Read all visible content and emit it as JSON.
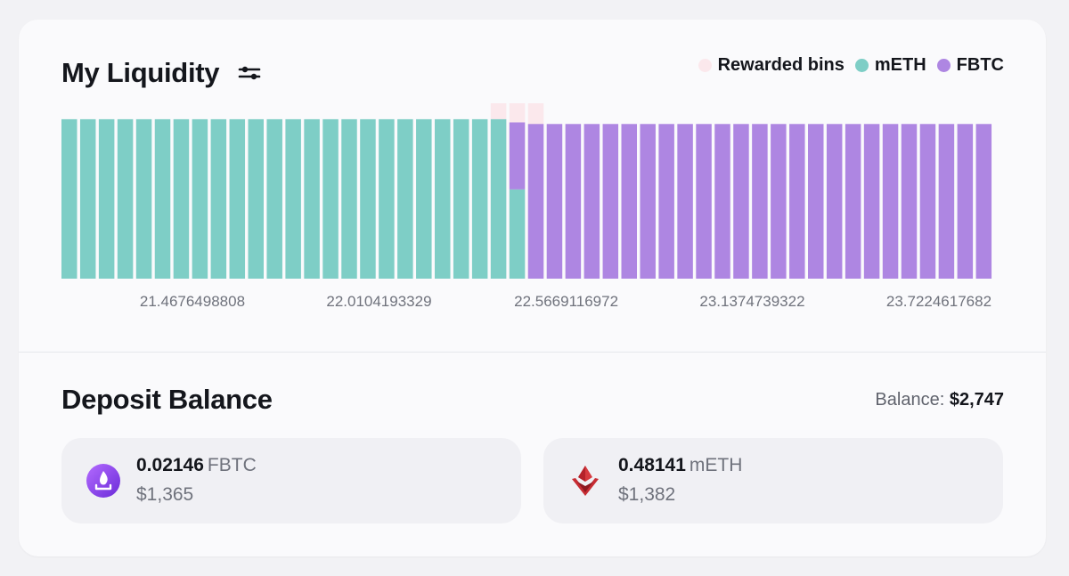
{
  "liquidity": {
    "title": "My Liquidity",
    "legend": [
      {
        "label": "Rewarded bins",
        "color": "#fbe8ec"
      },
      {
        "label": "mETH",
        "color": "#7ecec6"
      },
      {
        "label": "FBTC",
        "color": "#ae86e2"
      }
    ]
  },
  "chart_data": {
    "type": "bar",
    "title": "My Liquidity",
    "stacked": true,
    "bin_count": 50,
    "series": [
      {
        "name": "mETH",
        "color": "#7ecec6",
        "values": [
          100,
          100,
          100,
          100,
          100,
          100,
          100,
          100,
          100,
          100,
          100,
          100,
          100,
          100,
          100,
          100,
          100,
          100,
          100,
          100,
          100,
          100,
          100,
          100,
          56,
          0,
          0,
          0,
          0,
          0,
          0,
          0,
          0,
          0,
          0,
          0,
          0,
          0,
          0,
          0,
          0,
          0,
          0,
          0,
          0,
          0,
          0,
          0,
          0,
          0
        ]
      },
      {
        "name": "FBTC",
        "color": "#ae86e2",
        "values": [
          0,
          0,
          0,
          0,
          0,
          0,
          0,
          0,
          0,
          0,
          0,
          0,
          0,
          0,
          0,
          0,
          0,
          0,
          0,
          0,
          0,
          0,
          0,
          0,
          42,
          97,
          97,
          97,
          97,
          97,
          97,
          97,
          97,
          97,
          97,
          97,
          97,
          97,
          97,
          97,
          97,
          97,
          97,
          97,
          97,
          97,
          97,
          97,
          97,
          97
        ]
      }
    ],
    "rewarded_bins": [
      23,
      24,
      25
    ],
    "x_tick_labels": [
      {
        "bin": 9,
        "label": "21.4676498808"
      },
      {
        "bin": 19,
        "label": "22.0104193329"
      },
      {
        "bin": 29,
        "label": "22.5669116972"
      },
      {
        "bin": 39,
        "label": "23.1374739322"
      },
      {
        "bin": 49,
        "label": "23.7224617682"
      }
    ],
    "ylim": [
      0,
      110
    ],
    "xlabel": "",
    "ylabel": "",
    "grid": false,
    "legend_position": "top-right"
  },
  "deposit": {
    "title": "Deposit Balance",
    "balance_label": "Balance:",
    "balance_value": "$2,747",
    "tokens": [
      {
        "amount": "0.02146",
        "symbol": "FBTC",
        "usd": "$1,365",
        "icon": "fbtc-icon"
      },
      {
        "amount": "0.48141",
        "symbol": "mETH",
        "usd": "$1,382",
        "icon": "meth-icon"
      }
    ]
  }
}
